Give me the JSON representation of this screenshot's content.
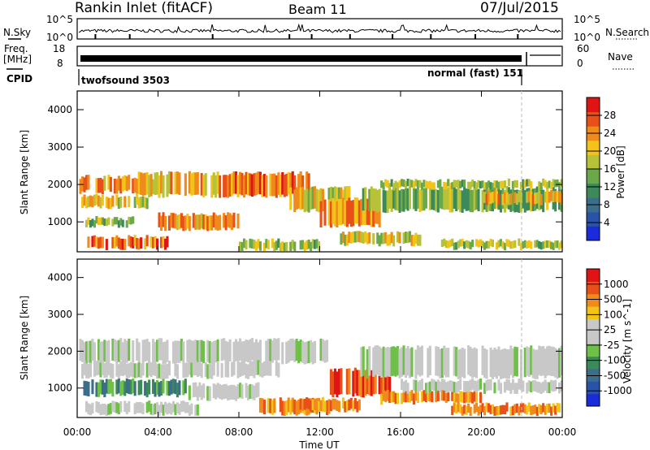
{
  "header": {
    "station": "Rankin Inlet (fitACF)",
    "beam": "Beam 11",
    "date": "07/Jul/2015"
  },
  "strips": {
    "nsky_label": "N.Sky",
    "nsearch_label": "N.Search",
    "nsky_ticks": [
      "10^5",
      "10^0"
    ],
    "nsearch_ticks": [
      "10^5",
      "10^0"
    ],
    "freq_label_line1": "Freq.",
    "freq_label_line2": "[MHz]",
    "freq_ticks": [
      "18",
      "8"
    ],
    "nave_label": "Nave",
    "nave_ticks": [
      "60",
      "0"
    ],
    "cpid_label": "CPID",
    "cpid_left": "twofsound 3503",
    "cpid_right": "normal (fast) 151"
  },
  "colors": {
    "power_scale": [
      "#1a2bdc",
      "#2a52a8",
      "#3a6e8a",
      "#3c8a5a",
      "#6aa84a",
      "#b8c238",
      "#f2c41a",
      "#f08a1a",
      "#e8501a",
      "#e01414"
    ],
    "velocity_scale": [
      "#1a2bdc",
      "#2a52a8",
      "#3a6e8a",
      "#3c8a5a",
      "#6fc048",
      "#c8c8c8",
      "#c8c8c8",
      "#f2c41a",
      "#f08a1a",
      "#e8501a",
      "#e01414"
    ],
    "ground_scatter": "#c8c8c8"
  },
  "chart_data": [
    {
      "type": "heatmap",
      "title": "",
      "xlabel": "Time UT",
      "ylabel": "Slant Range [km]",
      "x_ticks": [
        "00:00",
        "04:00",
        "08:00",
        "12:00",
        "16:00",
        "20:00",
        "00:00"
      ],
      "y_ticks": [
        "1000",
        "2000",
        "3000",
        "4000"
      ],
      "ylim": [
        200,
        4500
      ],
      "colorbar": {
        "label": "Power [dB]",
        "ticks": [
          "4",
          "8",
          "12",
          "16",
          "20",
          "24",
          "28"
        ],
        "range": [
          0,
          30
        ]
      },
      "bands": [
        {
          "t0": 0.1,
          "t1": 4.0,
          "r0": 1800,
          "r1": 2200,
          "level": 22
        },
        {
          "t0": 0.2,
          "t1": 3.5,
          "r0": 1400,
          "r1": 1700,
          "level": 18
        },
        {
          "t0": 0.4,
          "t1": 3.0,
          "r0": 900,
          "r1": 1100,
          "level": 14
        },
        {
          "t0": 0.5,
          "t1": 4.5,
          "r0": 300,
          "r1": 600,
          "level": 24
        },
        {
          "t0": 3.0,
          "t1": 7.0,
          "r0": 1700,
          "r1": 2300,
          "level": 20
        },
        {
          "t0": 4.0,
          "t1": 8.0,
          "r0": 800,
          "r1": 1200,
          "level": 22
        },
        {
          "t0": 7.0,
          "t1": 11.5,
          "r0": 1700,
          "r1": 2300,
          "level": 24
        },
        {
          "t0": 8.0,
          "t1": 12.0,
          "r0": 250,
          "r1": 500,
          "level": 16
        },
        {
          "t0": 10.5,
          "t1": 13.5,
          "r0": 1300,
          "r1": 1900,
          "level": 18
        },
        {
          "t0": 12.0,
          "t1": 15.0,
          "r0": 900,
          "r1": 1600,
          "level": 22
        },
        {
          "t0": 13.0,
          "t1": 17.0,
          "r0": 400,
          "r1": 700,
          "level": 18
        },
        {
          "t0": 14.0,
          "t1": 24.0,
          "r0": 1300,
          "r1": 1900,
          "level": 14
        },
        {
          "t0": 15.0,
          "t1": 24.0,
          "r0": 1900,
          "r1": 2100,
          "level": 16
        },
        {
          "t0": 18.0,
          "t1": 24.0,
          "r0": 300,
          "r1": 500,
          "level": 16
        },
        {
          "t0": 20.0,
          "t1": 24.0,
          "r0": 1500,
          "r1": 1800,
          "level": 20
        }
      ]
    },
    {
      "type": "heatmap",
      "title": "",
      "xlabel": "Time UT",
      "ylabel": "Slant Range [km]",
      "x_ticks": [
        "00:00",
        "04:00",
        "08:00",
        "12:00",
        "16:00",
        "20:00",
        "00:00"
      ],
      "y_ticks": [
        "1000",
        "2000",
        "3000",
        "4000"
      ],
      "ylim": [
        200,
        4500
      ],
      "colorbar": {
        "label": "Velocity [m s^-1]",
        "ticks": [
          "1000",
          "500",
          "100",
          "25",
          "-25",
          "-100",
          "-500",
          "-1000"
        ]
      },
      "bands": [
        {
          "t0": 0.1,
          "t1": 12.5,
          "r0": 1700,
          "r1": 2300,
          "kind": "ground"
        },
        {
          "t0": 0.2,
          "t1": 10.0,
          "r0": 1300,
          "r1": 1700,
          "kind": "ground"
        },
        {
          "t0": 0.3,
          "t1": 5.5,
          "r0": 800,
          "r1": 1200,
          "kind": "toward"
        },
        {
          "t0": 0.4,
          "t1": 6.0,
          "r0": 300,
          "r1": 600,
          "kind": "ground"
        },
        {
          "t0": 5.5,
          "t1": 9.0,
          "r0": 700,
          "r1": 1100,
          "kind": "ground"
        },
        {
          "t0": 9.0,
          "t1": 12.5,
          "r0": 300,
          "r1": 700,
          "kind": "away"
        },
        {
          "t0": 12.5,
          "t1": 15.5,
          "r0": 800,
          "r1": 1500,
          "kind": "away_strong"
        },
        {
          "t0": 11.0,
          "t1": 14.0,
          "r0": 400,
          "r1": 700,
          "kind": "away"
        },
        {
          "t0": 14.0,
          "t1": 24.0,
          "r0": 1300,
          "r1": 2100,
          "kind": "ground"
        },
        {
          "t0": 15.0,
          "t1": 20.0,
          "r0": 600,
          "r1": 900,
          "kind": "away"
        },
        {
          "t0": 18.5,
          "t1": 24.0,
          "r0": 300,
          "r1": 550,
          "kind": "away"
        },
        {
          "t0": 16.0,
          "t1": 24.0,
          "r0": 900,
          "r1": 1200,
          "kind": "ground"
        }
      ]
    }
  ]
}
